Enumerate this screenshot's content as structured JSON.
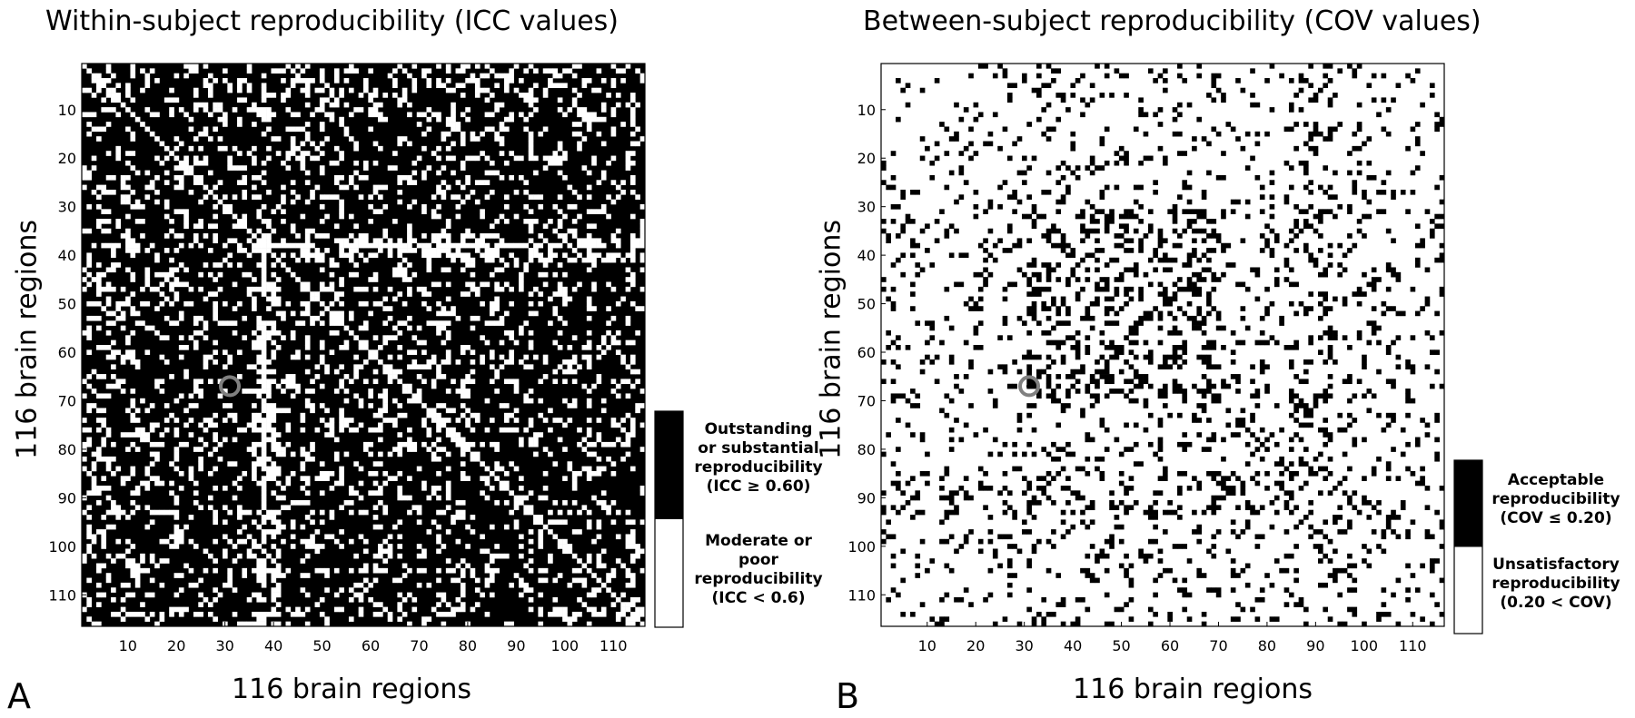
{
  "chart_data": [
    {
      "type": "heatmap",
      "panel": "A",
      "title": "Within-subject reproducibility (ICC values)",
      "xlabel": "116 brain regions",
      "ylabel": "116 brain regions",
      "n_regions": 116,
      "xlim": [
        1,
        116
      ],
      "ylim": [
        116,
        1
      ],
      "x_ticks": [
        10,
        20,
        30,
        40,
        50,
        60,
        70,
        80,
        90,
        100,
        110
      ],
      "y_ticks": [
        10,
        20,
        30,
        40,
        50,
        60,
        70,
        80,
        90,
        100,
        110
      ],
      "background_class": "Outstanding or substantial reproducibility (ICC ≥ 0.60)",
      "highlight_cell": {
        "x": 31,
        "y": 67
      },
      "legend": [
        {
          "color": "#000000",
          "label": [
            "Outstanding",
            "or substantial",
            "reproducibility",
            "(ICC ≥ 0.60)"
          ]
        },
        {
          "color": "#ffffff",
          "label": [
            "Moderate or",
            "poor",
            "reproducibility",
            "(ICC < 0.6)"
          ]
        }
      ],
      "cell_density": 0.18,
      "pattern_seed": 7
    },
    {
      "type": "heatmap",
      "panel": "B",
      "title": "Between-subject reproducibility (COV values)",
      "xlabel": "116 brain regions",
      "ylabel": "116 brain regions",
      "n_regions": 116,
      "xlim": [
        1,
        116
      ],
      "ylim": [
        116,
        1
      ],
      "x_ticks": [
        10,
        20,
        30,
        40,
        50,
        60,
        70,
        80,
        90,
        100,
        110
      ],
      "y_ticks": [
        10,
        20,
        30,
        40,
        50,
        60,
        70,
        80,
        90,
        100,
        110
      ],
      "background_class": "Unsatisfactory reproducibility (0.20 < COV)",
      "highlight_cell": {
        "x": 31,
        "y": 67
      },
      "legend": [
        {
          "color": "#000000",
          "label": [
            "Acceptable",
            "reproducibility",
            "(COV ≤ 0.20)"
          ]
        },
        {
          "color": "#ffffff",
          "label": [
            "Unsatisfactory",
            "reproducibility",
            "(0.20 < COV)"
          ]
        }
      ],
      "cell_density": 0.12,
      "pattern_seed": 19
    }
  ],
  "panels": {
    "a": {
      "letter": "A"
    },
    "b": {
      "letter": "B"
    }
  }
}
